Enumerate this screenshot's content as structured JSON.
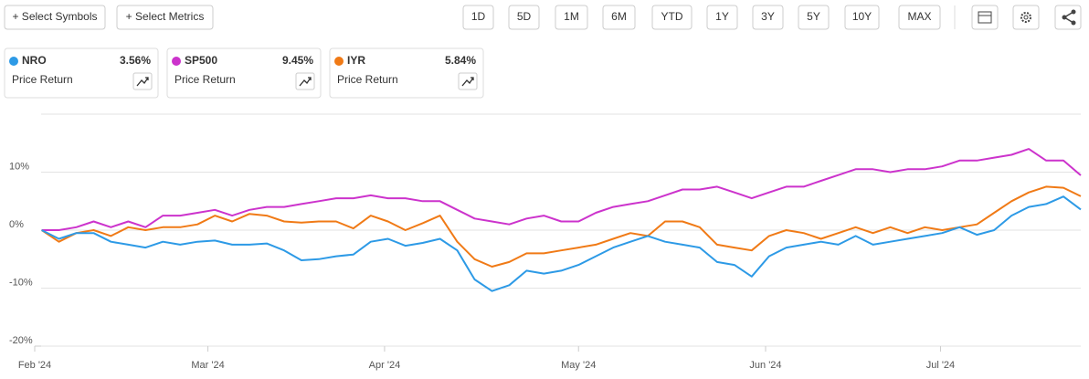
{
  "toolbar": {
    "buttons": [
      "+ Select Symbols",
      "+ Select Metrics"
    ],
    "ranges": [
      "1D",
      "5D",
      "1M",
      "6M",
      "YTD",
      "1Y",
      "3Y",
      "5Y",
      "10Y",
      "MAX"
    ]
  },
  "chart_data": {
    "type": "line",
    "legend_subtitle": "Price Return",
    "xlim": [
      -0.4,
      60
    ],
    "xticks": [
      {
        "value": -0.4,
        "label": "Feb '24"
      },
      {
        "value": 9.6,
        "label": "Mar '24"
      },
      {
        "value": 19.8,
        "label": "Apr '24"
      },
      {
        "value": 31.0,
        "label": "May '24"
      },
      {
        "value": 41.8,
        "label": "Jun '24"
      },
      {
        "value": 51.9,
        "label": "Jul '24"
      }
    ],
    "ylim": [
      -20,
      20
    ],
    "yticks": [
      {
        "value": 10,
        "label": "10%"
      },
      {
        "value": 0,
        "label": "0%"
      },
      {
        "value": -10,
        "label": "-10%"
      },
      {
        "value": -20,
        "label": "-20%"
      }
    ],
    "grid": true,
    "series": [
      {
        "name": "NRO",
        "color": "#2d9ae6",
        "change": 3.56,
        "change_label": "3.56%",
        "values": [
          0,
          -1.5,
          -0.5,
          -0.5,
          -2,
          -2.5,
          -3,
          -2,
          -2.5,
          -2,
          -1.8,
          -2.5,
          -2.5,
          -2.3,
          -3.5,
          -5.2,
          -5,
          -4.5,
          -4.2,
          -2,
          -1.5,
          -2.7,
          -2.2,
          -1.5,
          -3.5,
          -8.5,
          -10.5,
          -9.5,
          -7,
          -7.5,
          -7,
          -6,
          -4.5,
          -3,
          -2,
          -1,
          -2,
          -2.5,
          -3,
          -5.5,
          -6,
          -8,
          -4.5,
          -3,
          -2.5,
          -2,
          -2.5,
          -1,
          -2.5,
          -2,
          -1.5,
          -1,
          -0.5,
          0.5,
          -0.8,
          0,
          2.5,
          4,
          4.5,
          5.8,
          3.56
        ]
      },
      {
        "name": "SP500",
        "color": "#cc33cc",
        "change": 9.45,
        "change_label": "9.45%",
        "values": [
          0,
          0,
          0.5,
          1.5,
          0.5,
          1.5,
          0.5,
          2.5,
          2.5,
          3,
          3.5,
          2.5,
          3.5,
          4,
          4,
          4.5,
          5,
          5.5,
          5.5,
          6,
          5.5,
          5.5,
          5,
          5,
          3.5,
          2,
          1.5,
          1,
          2,
          2.5,
          1.5,
          1.5,
          3,
          4,
          4.5,
          5,
          6,
          7,
          7,
          7.5,
          6.5,
          5.5,
          6.5,
          7.5,
          7.5,
          8.5,
          9.5,
          10.5,
          10.5,
          10,
          10.5,
          10.5,
          11,
          12,
          12,
          12.5,
          13,
          14,
          12,
          12,
          9.45
        ]
      },
      {
        "name": "IYR",
        "color": "#f07a16",
        "change": 5.84,
        "change_label": "5.84%",
        "values": [
          0,
          -2,
          -0.5,
          0,
          -1,
          0.5,
          0,
          0.5,
          0.5,
          1,
          2.5,
          1.5,
          2.8,
          2.5,
          1.5,
          1.3,
          1.5,
          1.5,
          0.3,
          2.5,
          1.5,
          0,
          1.2,
          2.5,
          -2,
          -5,
          -6.3,
          -5.5,
          -4,
          -4,
          -3.5,
          -3,
          -2.5,
          -1.5,
          -0.5,
          -1,
          1.5,
          1.5,
          0.5,
          -2.5,
          -3,
          -3.5,
          -1,
          0,
          -0.5,
          -1.5,
          -0.5,
          0.5,
          -0.5,
          0.5,
          -0.5,
          0.5,
          0,
          0.5,
          1,
          3,
          5,
          6.5,
          7.5,
          7.3,
          5.84
        ]
      }
    ]
  }
}
